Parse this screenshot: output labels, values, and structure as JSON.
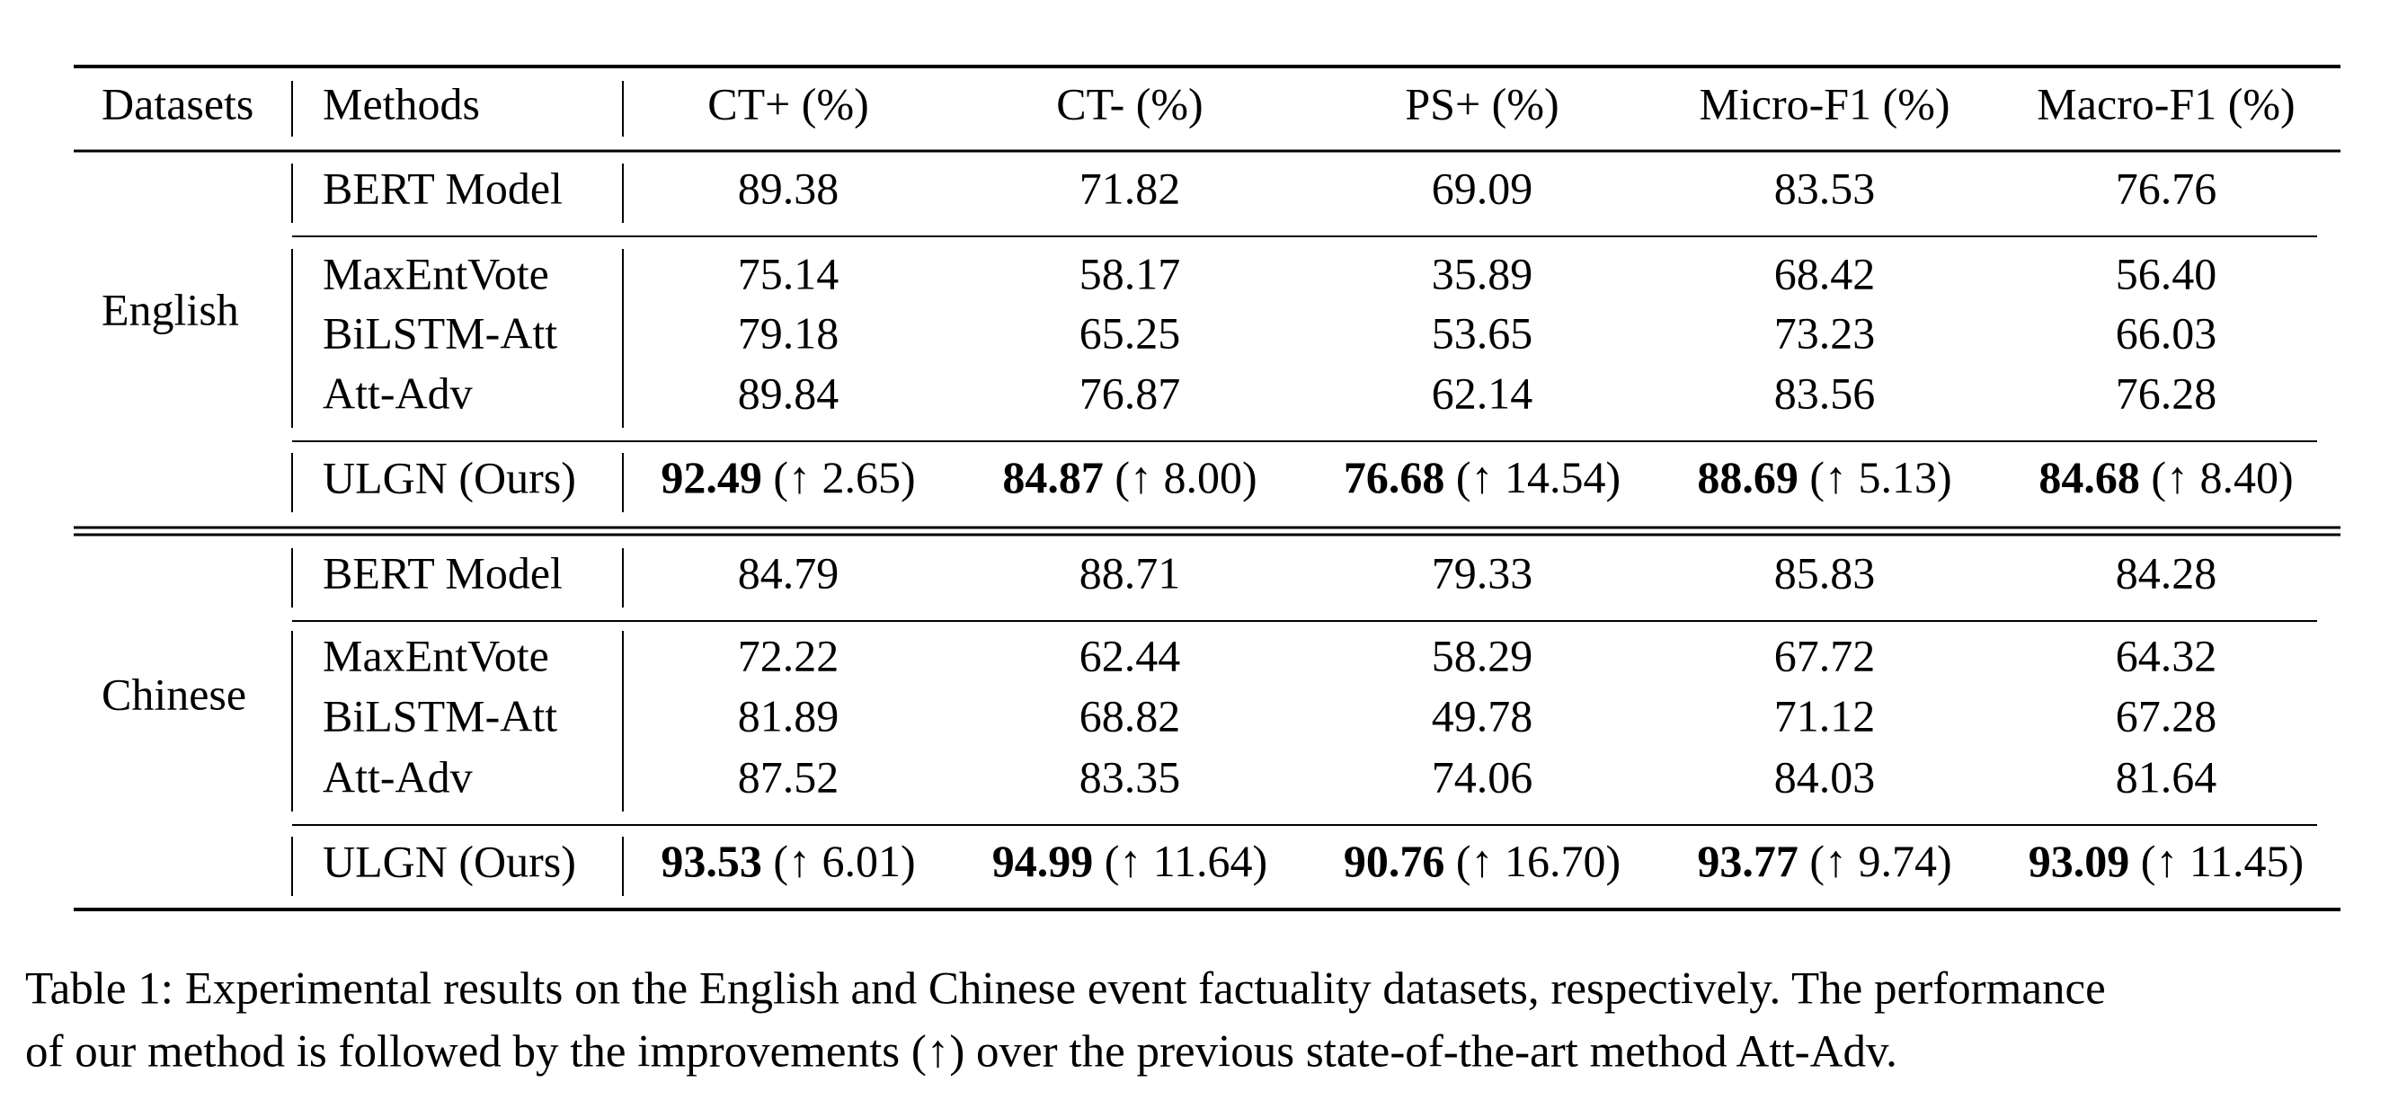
{
  "table": {
    "header": [
      "Datasets",
      "Methods",
      "CT+ (%)",
      "CT- (%)",
      "PS+ (%)",
      "Micro-F1 (%)",
      "Macro-F1 (%)"
    ],
    "groups": [
      {
        "dataset": "English",
        "rows": [
          {
            "method": "BERT Model",
            "values": [
              "89.38",
              "71.82",
              "69.09",
              "83.53",
              "76.76"
            ]
          },
          {
            "method": "MaxEntVote",
            "values": [
              "75.14",
              "58.17",
              "35.89",
              "68.42",
              "56.40"
            ]
          },
          {
            "method": "BiLSTM-Att",
            "values": [
              "79.18",
              "65.25",
              "53.65",
              "73.23",
              "66.03"
            ]
          },
          {
            "method": "Att-Adv",
            "values": [
              "89.84",
              "76.87",
              "62.14",
              "83.56",
              "76.28"
            ]
          },
          {
            "method": "ULGN (Ours)",
            "values": [
              {
                "best": "92.49",
                "gain": "(↑ 2.65)"
              },
              {
                "best": "84.87",
                "gain": "(↑ 8.00)"
              },
              {
                "best": "76.68",
                "gain": "(↑ 14.54)"
              },
              {
                "best": "88.69",
                "gain": "(↑ 5.13)"
              },
              {
                "best": "84.68",
                "gain": "(↑ 8.40)"
              }
            ]
          }
        ]
      },
      {
        "dataset": "Chinese",
        "rows": [
          {
            "method": "BERT Model",
            "values": [
              "84.79",
              "88.71",
              "79.33",
              "85.83",
              "84.28"
            ]
          },
          {
            "method": "MaxEntVote",
            "values": [
              "72.22",
              "62.44",
              "58.29",
              "67.72",
              "64.32"
            ]
          },
          {
            "method": "BiLSTM-Att",
            "values": [
              "81.89",
              "68.82",
              "49.78",
              "71.12",
              "67.28"
            ]
          },
          {
            "method": "Att-Adv",
            "values": [
              "87.52",
              "83.35",
              "74.06",
              "84.03",
              "81.64"
            ]
          },
          {
            "method": "ULGN (Ours)",
            "values": [
              {
                "best": "93.53",
                "gain": "(↑ 6.01)"
              },
              {
                "best": "94.99",
                "gain": "(↑ 11.64)"
              },
              {
                "best": "90.76",
                "gain": "(↑ 16.70)"
              },
              {
                "best": "93.77",
                "gain": "(↑ 9.74)"
              },
              {
                "best": "93.09",
                "gain": "(↑ 11.45)"
              }
            ]
          }
        ]
      }
    ]
  },
  "caption": {
    "lines": [
      "Table 1: Experimental results on the English and Chinese event factuality datasets, respectively. The performance",
      "of our method is followed by the improvements (↑) over the previous state-of-the-art method Att-Adv."
    ]
  }
}
